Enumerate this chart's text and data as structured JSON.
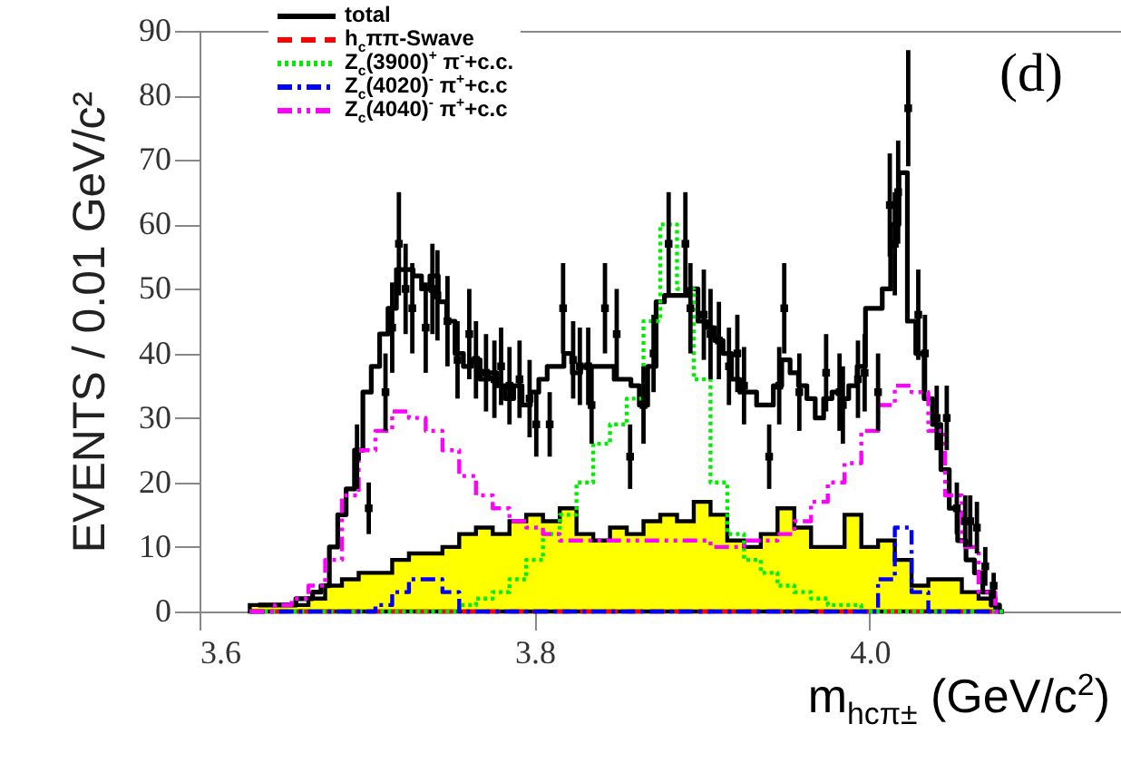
{
  "chart_data": {
    "type": "step",
    "ylabel": "EVENTS / 0.01 GeV/c²",
    "xlabel": "m$_{hcπ±}$ (GeV/c$^{2}$)",
    "annotations": [
      "(d)"
    ],
    "xlim": [
      3.6,
      4.15
    ],
    "xticks": [
      3.6,
      3.8,
      {
        "value": 4,
        "label": "4.0"
      }
    ],
    "ylim": [
      0,
      90
    ],
    "yticks": [
      0,
      10,
      20,
      30,
      40,
      50,
      60,
      70,
      80,
      90
    ],
    "legend": "top left",
    "series": [
      {
        "name": "total",
        "color": "#000000",
        "line_style": "solid",
        "x": [
          3.635,
          3.64,
          3.645,
          3.65,
          3.655,
          3.66,
          3.665,
          3.67,
          3.675,
          3.68,
          3.685,
          3.69,
          3.695,
          3.7,
          3.705,
          3.71,
          3.715,
          3.72,
          3.725,
          3.73,
          3.735,
          3.74,
          3.745,
          3.75,
          3.755,
          3.76,
          3.765,
          3.77,
          3.775,
          3.78,
          3.785,
          3.79,
          3.795,
          3.8,
          3.805,
          3.81,
          3.815,
          3.82,
          3.825,
          3.83,
          3.835,
          3.84,
          3.845,
          3.85,
          3.855,
          3.86,
          3.865,
          3.87,
          3.875,
          3.88,
          3.885,
          3.89,
          3.895,
          3.9,
          3.905,
          3.91,
          3.915,
          3.92,
          3.925,
          3.93,
          3.935,
          3.94,
          3.945,
          3.95,
          3.955,
          3.96,
          3.965,
          3.97,
          3.975,
          3.98,
          3.985,
          3.99,
          3.995,
          4.0,
          4.005,
          4.01,
          4.015,
          4.02,
          4.025,
          4.03,
          4.035,
          4.04,
          4.045,
          4.05,
          4.055,
          4.06,
          4.065,
          4.07,
          4.075,
          4.08
        ],
        "values": [
          1,
          1,
          1,
          1,
          1,
          2,
          2,
          3,
          4,
          10,
          15,
          19,
          25,
          34,
          38,
          43,
          47,
          53,
          53,
          52,
          50,
          52,
          48,
          45,
          40,
          38,
          39,
          36,
          37,
          35,
          33,
          35,
          32,
          34,
          36,
          38,
          38,
          40,
          37,
          38,
          38,
          38,
          38,
          36,
          36,
          35,
          32,
          38,
          48,
          49,
          49,
          49,
          50,
          45,
          44,
          42,
          40,
          36,
          34,
          34,
          32,
          32,
          35,
          39,
          37,
          35,
          33,
          30,
          33,
          34,
          33,
          35,
          38,
          47,
          47,
          50,
          60,
          68,
          45,
          40,
          33,
          29,
          22,
          16,
          11,
          8,
          6,
          3,
          1,
          0
        ]
      },
      {
        "name": "h$_{c}$ππ-Swave",
        "color": "#ff0000",
        "line_style": "dashed",
        "x": [
          3.63,
          3.64,
          3.65,
          3.66,
          3.67,
          3.68,
          3.69,
          3.7,
          3.71,
          3.72,
          3.73,
          3.74,
          3.75,
          3.76,
          3.77,
          3.78,
          3.79,
          3.8,
          3.81,
          3.82,
          3.83,
          3.84,
          3.85,
          3.86,
          3.87,
          3.88,
          3.89,
          3.9,
          3.91,
          3.92,
          3.93,
          3.94,
          3.95,
          3.96,
          3.97,
          3.98,
          3.99,
          4.0,
          4.01,
          4.02,
          4.03,
          4.04,
          4.05,
          4.06,
          4.07,
          4.08
        ],
        "values": [
          0,
          0,
          0,
          0,
          0,
          0,
          0,
          0,
          0,
          0,
          0,
          0,
          0,
          0,
          0,
          0,
          0,
          0,
          0,
          0,
          0,
          0,
          0,
          0,
          0,
          0,
          0,
          0,
          0,
          0,
          0,
          0,
          0,
          0,
          0,
          0,
          0,
          0,
          0,
          0,
          0,
          0,
          0,
          0,
          0,
          0
        ]
      },
      {
        "name": "Z$_{c}$(3900)$^{+}$ π$^{-}$+c.c.",
        "color": "#00ee00",
        "line_style": "dotted",
        "x": [
          3.63,
          3.64,
          3.65,
          3.66,
          3.67,
          3.68,
          3.69,
          3.7,
          3.71,
          3.72,
          3.73,
          3.74,
          3.75,
          3.76,
          3.77,
          3.78,
          3.79,
          3.8,
          3.81,
          3.82,
          3.83,
          3.84,
          3.85,
          3.86,
          3.87,
          3.88,
          3.89,
          3.9,
          3.91,
          3.92,
          3.93,
          3.94,
          3.95,
          3.96,
          3.97,
          3.98,
          3.99,
          4.0,
          4.01,
          4.02,
          4.03,
          4.04,
          4.05,
          4.06,
          4.07,
          4.08
        ],
        "values": [
          0,
          0,
          0,
          0,
          0,
          0,
          0,
          0,
          0,
          0,
          0,
          0,
          0,
          1,
          2,
          3,
          5,
          8,
          12,
          15,
          20,
          26,
          29,
          33,
          45,
          60,
          50,
          36,
          20,
          12,
          8,
          6,
          4,
          3,
          2,
          1,
          1,
          0,
          0,
          0,
          0,
          0,
          0,
          0,
          0,
          0
        ]
      },
      {
        "name": "Z$_{c}$(4020)$^{-}$ π$^{+}$+c.c",
        "color": "#0000ff",
        "line_style": "dashdot",
        "x": [
          3.63,
          3.64,
          3.65,
          3.66,
          3.67,
          3.68,
          3.69,
          3.7,
          3.71,
          3.72,
          3.73,
          3.74,
          3.75,
          3.76,
          3.77,
          3.78,
          3.79,
          3.8,
          3.81,
          3.82,
          3.83,
          3.84,
          3.85,
          3.86,
          3.87,
          3.88,
          3.89,
          3.9,
          3.91,
          3.92,
          3.93,
          3.94,
          3.95,
          3.96,
          3.97,
          3.98,
          3.99,
          4.0,
          4.01,
          4.02,
          4.03,
          4.04,
          4.05,
          4.06,
          4.07,
          4.08
        ],
        "values": [
          0,
          0,
          0,
          0,
          0,
          0,
          0,
          0,
          1,
          3,
          5,
          5,
          3,
          0,
          0,
          0,
          0,
          0,
          0,
          0,
          0,
          0,
          0,
          0,
          0,
          0,
          0,
          0,
          0,
          0,
          0,
          0,
          0,
          0,
          0,
          0,
          0,
          0,
          5,
          13,
          3,
          0,
          0,
          0,
          0,
          0
        ]
      },
      {
        "name": "Z$_{c}$(4040)$^{-}$ π$^{+}$+c.c",
        "color": "#ff00ff",
        "line_style": "dashdotdot",
        "x": [
          3.63,
          3.64,
          3.65,
          3.66,
          3.67,
          3.68,
          3.69,
          3.7,
          3.71,
          3.72,
          3.73,
          3.74,
          3.75,
          3.76,
          3.77,
          3.78,
          3.79,
          3.8,
          3.81,
          3.82,
          3.83,
          3.84,
          3.85,
          3.86,
          3.87,
          3.88,
          3.89,
          3.9,
          3.91,
          3.92,
          3.93,
          3.94,
          3.95,
          3.96,
          3.97,
          3.98,
          3.99,
          4.0,
          4.01,
          4.02,
          4.03,
          4.04,
          4.05,
          4.06,
          4.07,
          4.08
        ],
        "values": [
          0,
          0,
          1,
          2,
          4,
          8,
          18,
          25,
          28,
          31,
          30,
          28,
          25,
          21,
          18,
          16,
          14,
          13,
          12,
          11,
          11,
          11,
          11,
          11,
          11,
          11,
          11,
          11,
          10,
          10,
          11,
          11,
          12,
          14,
          17,
          20,
          23,
          28,
          32,
          35,
          34,
          28,
          18,
          10,
          3,
          0
        ]
      },
      {
        "type": "area",
        "color": "#ffff00",
        "x": [
          3.63,
          3.64,
          3.65,
          3.66,
          3.67,
          3.68,
          3.69,
          3.7,
          3.71,
          3.72,
          3.73,
          3.74,
          3.75,
          3.76,
          3.77,
          3.78,
          3.79,
          3.8,
          3.81,
          3.82,
          3.83,
          3.84,
          3.85,
          3.86,
          3.87,
          3.88,
          3.89,
          3.9,
          3.91,
          3.92,
          3.93,
          3.94,
          3.95,
          3.96,
          3.97,
          3.98,
          3.99,
          4.0,
          4.01,
          4.02,
          4.03,
          4.04,
          4.05,
          4.06,
          4.07,
          4.08
        ],
        "values": [
          1,
          1,
          1,
          1,
          2,
          4,
          5,
          6,
          6,
          8,
          9,
          9,
          10,
          12,
          13,
          12,
          14,
          15,
          14,
          16,
          12,
          11,
          13,
          12,
          14,
          15,
          14,
          17,
          15,
          11,
          10,
          12,
          16,
          13,
          10,
          10,
          15,
          10,
          11,
          8,
          4,
          5,
          5,
          3,
          2,
          0
        ]
      },
      {
        "type": "scatter",
        "color": "#000000",
        "marker": "square",
        "x": [
          3.694,
          3.701,
          3.711,
          3.715,
          3.719,
          3.723,
          3.727,
          3.735,
          3.739,
          3.742,
          3.748,
          3.754,
          3.761,
          3.765,
          3.771,
          3.776,
          3.78,
          3.785,
          3.791,
          3.797,
          3.801,
          3.809,
          3.817,
          3.823,
          3.827,
          3.832,
          3.834,
          3.842,
          3.849,
          3.857,
          3.865,
          3.871,
          3.88,
          3.89,
          3.893,
          3.901,
          3.905,
          3.91,
          3.916,
          3.921,
          3.925,
          3.94,
          3.946,
          3.949,
          3.958,
          3.974,
          3.982,
          3.984,
          3.993,
          3.997,
          4.005,
          4.012,
          4.015,
          4.017,
          4.023,
          4.029,
          4.033,
          4.04,
          4.046,
          4.052,
          4.057,
          4.06,
          4.064,
          4.069,
          4.074
        ],
        "values": [
          24,
          16,
          34,
          44,
          57,
          50,
          47,
          44,
          50,
          49,
          45,
          39,
          43,
          39,
          37,
          36,
          38,
          35,
          36,
          33,
          29,
          29,
          47,
          39,
          38,
          38,
          32,
          47,
          43,
          24,
          32,
          40,
          57,
          57,
          47,
          46,
          43,
          42,
          38,
          40,
          35,
          24,
          35,
          47,
          34,
          37,
          34,
          32,
          36,
          37,
          34,
          63,
          57,
          65,
          78,
          46,
          40,
          30,
          30,
          16,
          14,
          14,
          13,
          7,
          4
        ],
        "errors": [
          5,
          4,
          6,
          7,
          8,
          7,
          7,
          7,
          7,
          7,
          7,
          6,
          7,
          6,
          6,
          6,
          6,
          6,
          6,
          6,
          5,
          5,
          7,
          6,
          6,
          6,
          6,
          7,
          7,
          5,
          6,
          6,
          8,
          8,
          7,
          7,
          7,
          6,
          6,
          6,
          6,
          5,
          6,
          7,
          6,
          6,
          6,
          6,
          6,
          6,
          6,
          8,
          8,
          8,
          9,
          7,
          6,
          5,
          5,
          4,
          4,
          4,
          4,
          3,
          2
        ]
      }
    ]
  }
}
